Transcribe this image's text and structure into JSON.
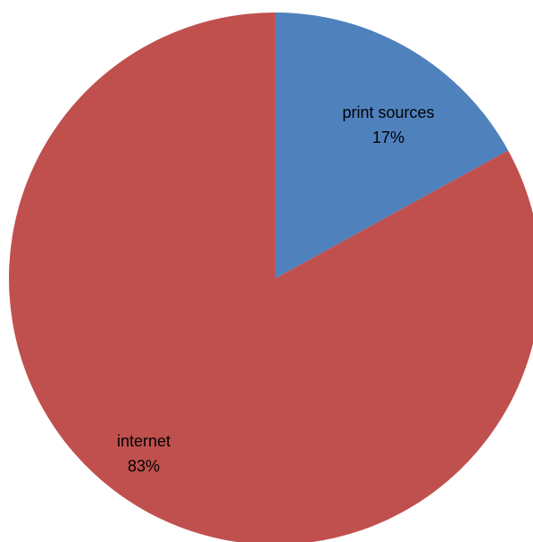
{
  "chart_data": {
    "type": "pie",
    "title": "",
    "legend": "none",
    "slices": [
      {
        "label": "print sources",
        "value": 17,
        "percent_label": "17%",
        "color": "#4f81bd"
      },
      {
        "label": "internet",
        "value": 83,
        "percent_label": "83%",
        "color": "#c0504d"
      }
    ]
  }
}
